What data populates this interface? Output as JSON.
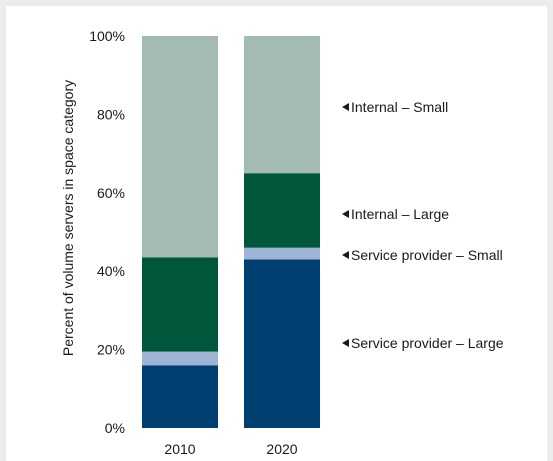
{
  "chart_data": {
    "type": "bar",
    "stacked": true,
    "categories": [
      "2010",
      "2020"
    ],
    "series": [
      {
        "name": "Service provider – Large",
        "color": "#003f72",
        "values": [
          16,
          43
        ]
      },
      {
        "name": "Service provider – Small",
        "color": "#9db4d4",
        "values": [
          3.5,
          3
        ]
      },
      {
        "name": "Internal – Large",
        "color": "#00573c",
        "values": [
          24,
          19
        ]
      },
      {
        "name": "Internal – Small",
        "color": "#a3bbb0",
        "values": [
          56.5,
          35
        ]
      }
    ],
    "ylabel": "Percent of volume servers in space category",
    "ylim": [
      0,
      100
    ],
    "yticks": [
      0,
      20,
      40,
      60,
      80,
      100
    ],
    "ytick_labels": [
      "0%",
      "20%",
      "40%",
      "60%",
      "80%",
      "100%"
    ],
    "legend_placement": "right, labels pointing to 2020 bar segments",
    "grid": false
  }
}
